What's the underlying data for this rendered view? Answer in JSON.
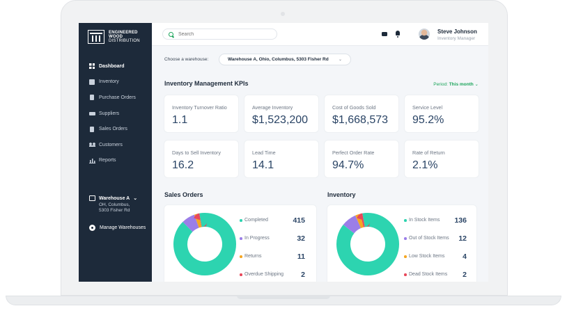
{
  "colors": {
    "sidebar_bg": "#1d2a3a",
    "accent_green": "#1aa45a",
    "kpi_value": "#2a4465",
    "completed": "#2dd4b0",
    "in_progress": "#9b7ee8",
    "returns": "#f5a623",
    "overdue": "#e8485b"
  },
  "brand": {
    "line1": "ENGINEERED",
    "line2": "WOOD",
    "line3": "DISTRIBUTION"
  },
  "sidebar": {
    "items": [
      {
        "label": "Dashboard",
        "icon": "dashboard-icon"
      },
      {
        "label": "Inventory",
        "icon": "inventory-icon"
      },
      {
        "label": "Purchase Orders",
        "icon": "clipboard-icon"
      },
      {
        "label": "Suppliers",
        "icon": "truck-icon"
      },
      {
        "label": "Sales Orders",
        "icon": "document-icon"
      },
      {
        "label": "Customers",
        "icon": "users-icon"
      },
      {
        "label": "Reports",
        "icon": "chart-icon"
      }
    ],
    "warehouse": {
      "name": "Warehouse A",
      "addr1": "OH, Columbus,",
      "addr2": "5303 Fisher Rd"
    },
    "manage_label": "Manage Warehouses"
  },
  "topbar": {
    "search_placeholder": "Search",
    "user": {
      "name": "Steve Johnson",
      "role": "Inventory Manager"
    }
  },
  "main": {
    "warehouse_label": "Choose a warehouse:",
    "warehouse_selected": "Warehouse A, Ohio, Columbus, 5303 Fisher Rd",
    "kpi_title": "Inventory Management KPIs",
    "period_label": "Period:",
    "period_value": "This month",
    "kpis": [
      {
        "label": "Inventory Turnover Ratio",
        "value": "1.1"
      },
      {
        "label": "Average Inventory",
        "value": "$1,523,200"
      },
      {
        "label": "Cost of Goods Sold",
        "value": "$1,668,573"
      },
      {
        "label": "Service Level",
        "value": "95.2%"
      },
      {
        "label": "Days to Sell Inventory",
        "value": "16.2"
      },
      {
        "label": "Lead Time",
        "value": "14.1"
      },
      {
        "label": "Perfect Order Rate",
        "value": "94.7%"
      },
      {
        "label": "Rate of Return",
        "value": "2.1%"
      }
    ],
    "sales_title": "Sales Orders",
    "inventory_title": "Inventory"
  },
  "chart_data": [
    {
      "type": "pie",
      "title": "Sales Orders",
      "categories": [
        "Completed",
        "In Progress",
        "Returns",
        "Overdue Shipping"
      ],
      "values": [
        415,
        32,
        11,
        2
      ],
      "colors": [
        "#2dd4b0",
        "#9b7ee8",
        "#f5a623",
        "#e8485b"
      ]
    },
    {
      "type": "pie",
      "title": "Inventory",
      "categories": [
        "In Stock Items",
        "Out of Stock Items",
        "Low Stock Items",
        "Dead Stock Items"
      ],
      "values": [
        136,
        12,
        4,
        2
      ],
      "colors": [
        "#2dd4b0",
        "#9b7ee8",
        "#f5a623",
        "#e8485b"
      ]
    }
  ]
}
